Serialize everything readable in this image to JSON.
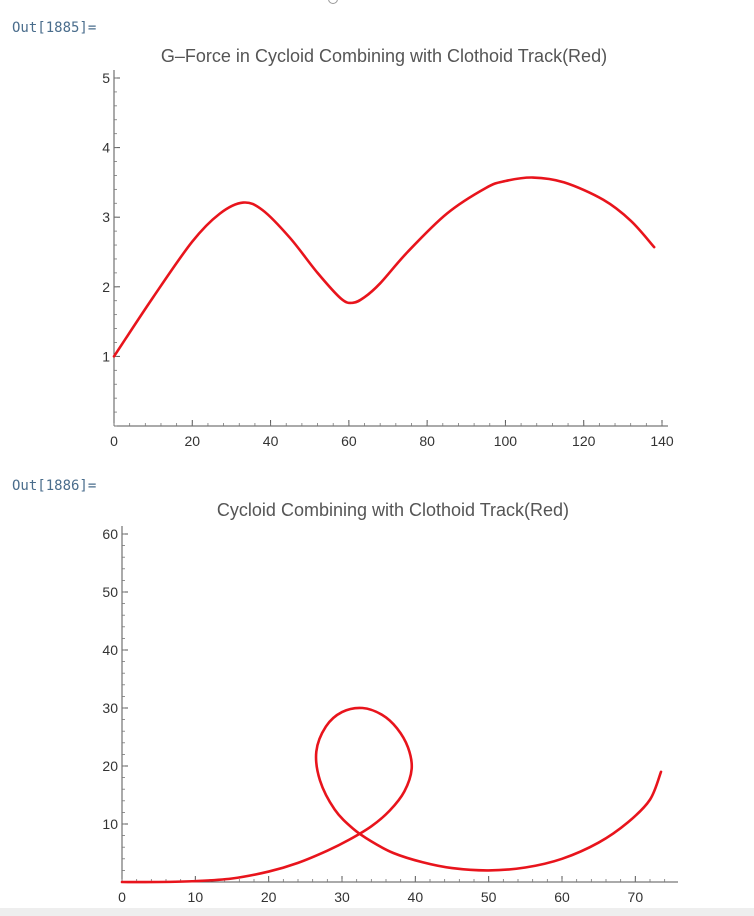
{
  "cells": [
    {
      "out_label": "Out[1885]="
    },
    {
      "out_label": "Out[1886]="
    }
  ],
  "chart_data": [
    {
      "type": "line",
      "title": "G–Force in Cycloid Combining with Clothoid Track(Red)",
      "xlabel": "",
      "ylabel": "",
      "xlim": [
        0,
        140
      ],
      "ylim": [
        0,
        5
      ],
      "xticks": [
        0,
        20,
        40,
        60,
        80,
        100,
        120,
        140
      ],
      "yticks": [
        1,
        2,
        3,
        4,
        5
      ],
      "grid": false,
      "color": "#e8141c",
      "series": [
        {
          "x": [
            0,
            10,
            20,
            27,
            33,
            38,
            45,
            52,
            58,
            61,
            64,
            68,
            75,
            85,
            95,
            100,
            107,
            115,
            125,
            132,
            138
          ],
          "y": [
            1.0,
            1.85,
            2.65,
            3.05,
            3.21,
            3.1,
            2.7,
            2.2,
            1.83,
            1.77,
            1.85,
            2.05,
            2.5,
            3.05,
            3.42,
            3.52,
            3.57,
            3.5,
            3.25,
            2.95,
            2.57
          ]
        }
      ]
    },
    {
      "type": "line",
      "title": "Cycloid Combining with Clothoid Track(Red)",
      "xlabel": "",
      "ylabel": "",
      "xlim": [
        0,
        75
      ],
      "ylim": [
        0,
        60
      ],
      "xticks": [
        0,
        10,
        20,
        30,
        40,
        50,
        60,
        70
      ],
      "yticks": [
        10,
        20,
        30,
        40,
        50,
        60
      ],
      "grid": false,
      "color": "#e8141c",
      "series": [
        {
          "x": [
            0,
            5,
            10,
            15,
            20,
            24,
            28,
            31,
            34,
            36.5,
            38.5,
            39.5,
            39,
            37.5,
            35.5,
            32.8,
            30,
            27.8,
            26.5,
            27,
            29,
            31.5,
            34,
            37,
            41,
            45,
            50,
            55,
            60,
            65,
            69,
            72,
            73.5
          ],
          "y": [
            0,
            0,
            0.15,
            0.6,
            1.8,
            3.3,
            5.4,
            7.3,
            9.6,
            12.3,
            15.6,
            19.5,
            23.2,
            26.5,
            28.8,
            30,
            29.3,
            26.8,
            22.5,
            17.5,
            12.5,
            9.2,
            7.0,
            5.0,
            3.4,
            2.4,
            2.0,
            2.5,
            4.0,
            6.8,
            10.3,
            14.2,
            19.0
          ]
        }
      ]
    }
  ]
}
